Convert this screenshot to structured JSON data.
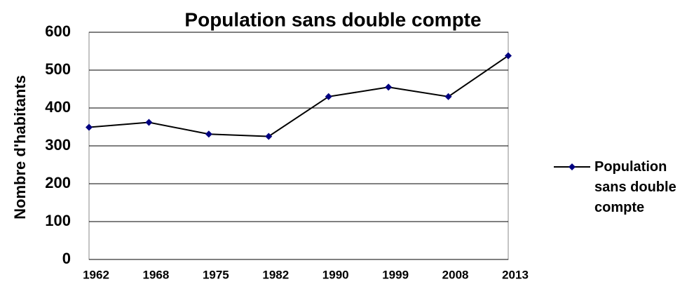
{
  "chart_data": {
    "type": "line",
    "title": "Population sans double compte",
    "y_label": "Nombre d'habitants",
    "categories": [
      "1962",
      "1968",
      "1975",
      "1982",
      "1990",
      "1999",
      "2008",
      "2013"
    ],
    "series": [
      {
        "name": "Population sans double compte",
        "color": "#000080",
        "line_color": "#000000",
        "values": [
          349,
          362,
          331,
          325,
          430,
          455,
          430,
          538
        ]
      }
    ],
    "ylim": [
      0,
      600
    ],
    "yticks": [
      0,
      100,
      200,
      300,
      400,
      500,
      600
    ],
    "grid": true,
    "legend": "right"
  }
}
